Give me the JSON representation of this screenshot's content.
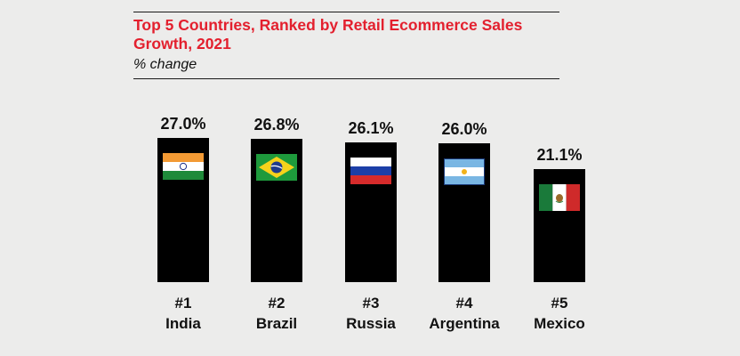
{
  "chart_data": {
    "type": "bar",
    "title": "Top 5 Countries, Ranked by Retail Ecommerce Sales Growth, 2021",
    "subtitle": "% change",
    "categories": [
      "India",
      "Brazil",
      "Russia",
      "Argentina",
      "Mexico"
    ],
    "ranks": [
      "#1",
      "#2",
      "#3",
      "#4",
      "#5"
    ],
    "values": [
      27.0,
      26.8,
      26.1,
      26.0,
      21.1
    ],
    "value_labels": [
      "27.0%",
      "26.8%",
      "26.1%",
      "26.0%",
      "21.1%"
    ],
    "ylim": [
      0,
      27.0
    ],
    "grid": false,
    "colors": {
      "bar": "#000000",
      "title": "#e3202e",
      "background": "#ececeb"
    }
  }
}
